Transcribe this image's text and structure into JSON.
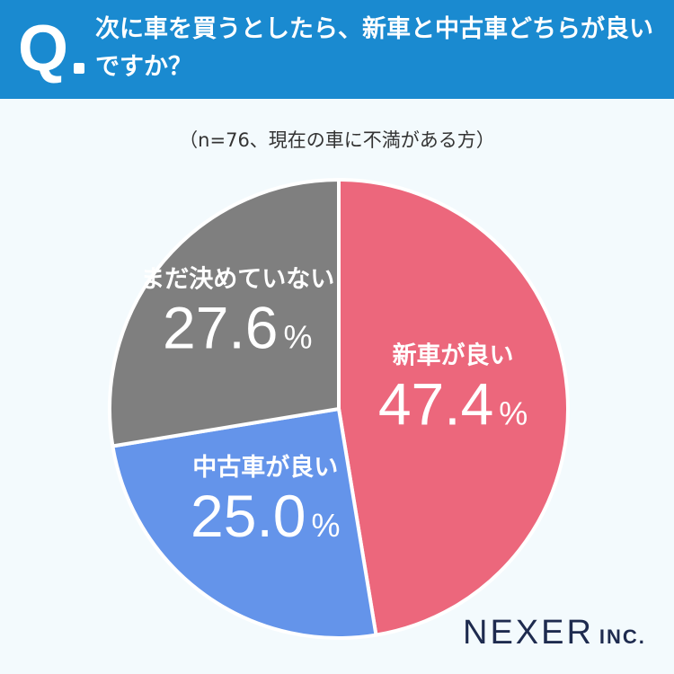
{
  "header": {
    "q_label": "Q",
    "question": "次に車を買うとしたら、新車と中古車どちらが良いですか？"
  },
  "sample_note": "（n=76、現在の車に不満がある方）",
  "chart_data": {
    "type": "pie",
    "slices": [
      {
        "label": "新車が良い",
        "value": 47.4,
        "display": "47.4",
        "color": "#ec677c"
      },
      {
        "label": "中古車が良い",
        "value": 25.0,
        "display": "25.0",
        "color": "#6494ea"
      },
      {
        "label": "まだ決めていない",
        "value": 27.6,
        "display": "27.6",
        "color": "#7f7f7f"
      }
    ],
    "unit": "%",
    "start": "12 o'clock",
    "direction": "clockwise"
  },
  "logo": {
    "main": "NEXER",
    "suffix": "INC."
  }
}
